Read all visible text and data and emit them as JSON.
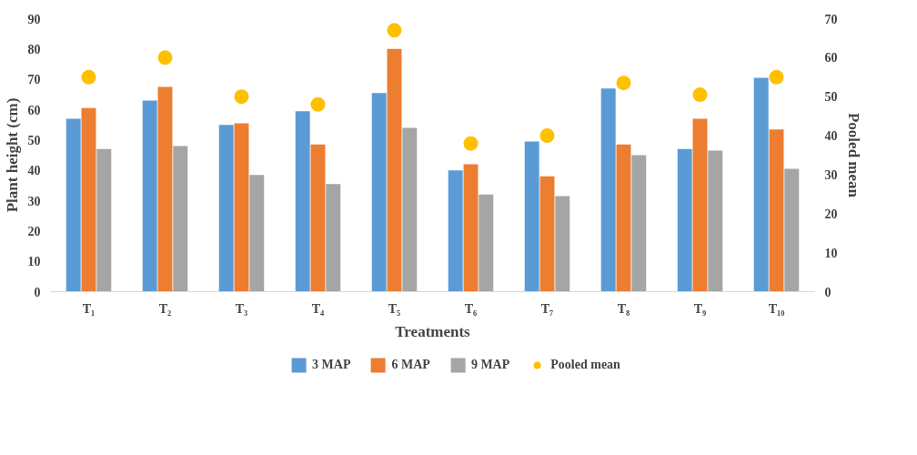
{
  "chart_data": {
    "type": "bar",
    "xlabel": "Treatments",
    "ylabel": "Plant height (cm)",
    "y2label": "Pooled mean",
    "categories": [
      "T₁",
      "T₂",
      "T₃",
      "T₄",
      "T₅",
      "T₆",
      "T₇",
      "T₈",
      "T₉",
      "T₁₀"
    ],
    "series": [
      {
        "name": "3 MAP",
        "color": "#5b9bd5",
        "values": [
          57,
          63,
          55,
          59.5,
          65.5,
          40,
          49.5,
          67,
          47,
          70.5
        ]
      },
      {
        "name": "6 MAP",
        "color": "#ed7d31",
        "values": [
          60.5,
          67.5,
          55.5,
          48.5,
          80,
          42,
          38,
          48.5,
          57,
          53.5
        ]
      },
      {
        "name": "9 MAP",
        "color": "#a5a5a5",
        "values": [
          47,
          48,
          38.5,
          35.5,
          54,
          32,
          31.5,
          45,
          46.5,
          40.5
        ]
      },
      {
        "name": "Pooled mean",
        "color": "#ffc000",
        "type": "scatter",
        "axis": "y2",
        "marker": "circle",
        "values": [
          55,
          60,
          50,
          48,
          67,
          38,
          40,
          53.5,
          50.5,
          55
        ]
      }
    ],
    "ylim": [
      0,
      90
    ],
    "yticks": [
      0,
      10,
      20,
      30,
      40,
      50,
      60,
      70,
      80,
      90
    ],
    "y2lim": [
      0,
      70
    ],
    "y2ticks": [
      0,
      10,
      20,
      30,
      40,
      50,
      60,
      70
    ],
    "grid": false,
    "legend": "bottom"
  }
}
